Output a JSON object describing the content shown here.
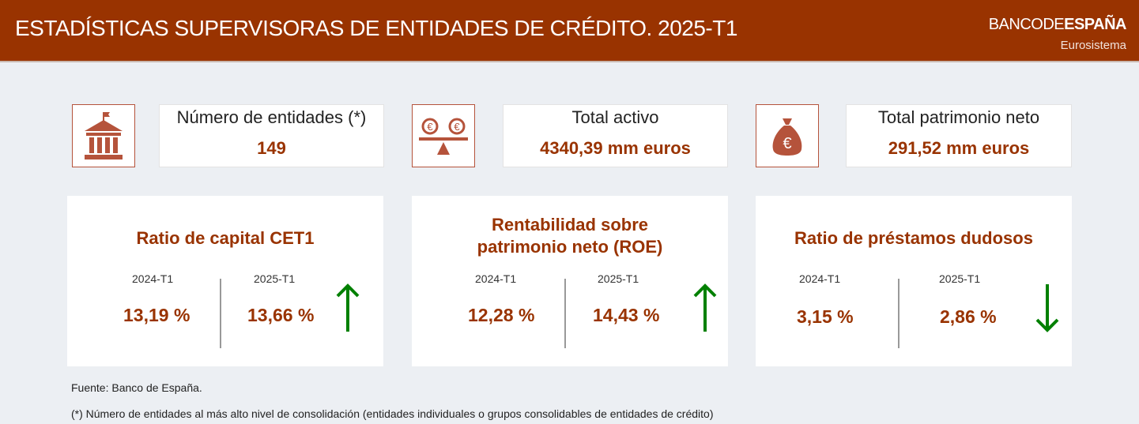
{
  "header": {
    "title": "ESTADÍSTICAS SUPERVISORAS DE ENTIDADES DE CRÉDITO. 2025-T1",
    "logo_part1": "BANCO",
    "logo_part2": "DE",
    "logo_part3": "ESPAÑA",
    "logo_sub": "Eurosistema"
  },
  "kpis": [
    {
      "icon": "bank-building-icon",
      "label": "Número de entidades (*)",
      "value": "149"
    },
    {
      "icon": "euro-balance-scale-icon",
      "label": "Total activo",
      "value": "4340,39 mm euros"
    },
    {
      "icon": "euro-money-bag-icon",
      "label": "Total patrimonio neto",
      "value": "291,52 mm euros"
    }
  ],
  "cards": [
    {
      "title": "Ratio de capital CET1",
      "period1": "2024-T1",
      "value1": "13,19 %",
      "period2": "2025-T1",
      "value2": "13,66 %",
      "trend": "up"
    },
    {
      "title": "Rentabilidad sobre patrimonio neto (ROE)",
      "period1": "2024-T1",
      "value1": "12,28 %",
      "period2": "2025-T1",
      "value2": "14,43 %",
      "trend": "up"
    },
    {
      "title": "Ratio de préstamos dudosos",
      "period1": "2024-T1",
      "value1": "3,15 %",
      "period2": "2025-T1",
      "value2": "2,86 %",
      "trend": "down"
    }
  ],
  "colors": {
    "brand": "#993300",
    "trend": "#008000",
    "background": "#eceff3"
  },
  "footer": {
    "source": "Fuente: Banco de España.",
    "note": "(*) Número de entidades al más alto nivel de consolidación (entidades individuales o grupos consolidables de entidades de crédito)"
  }
}
